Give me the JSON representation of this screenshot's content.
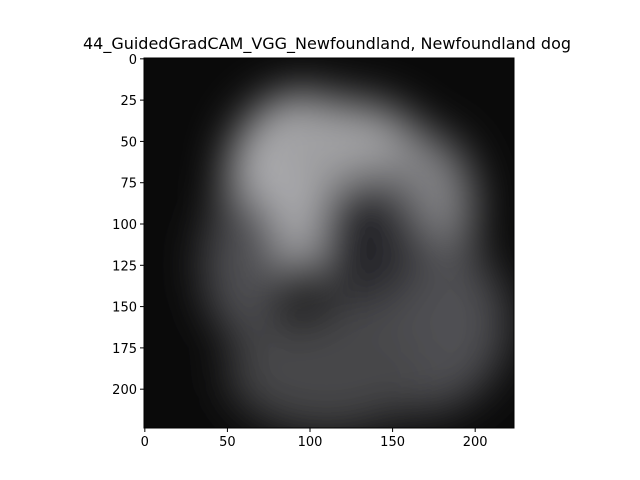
{
  "chart_data": {
    "type": "heatmap",
    "title": "44_GuidedGradCAM_VGG_Newfoundland, Newfoundland dog",
    "xlabel": "",
    "ylabel": "",
    "colormap": "gray",
    "image_width": 224,
    "image_height": 224,
    "xlim": [
      -0.5,
      223.5
    ],
    "ylim": [
      223.5,
      -0.5
    ],
    "x_ticks": [
      0,
      50,
      100,
      150,
      200
    ],
    "x_tick_labels": [
      "0",
      "50",
      "100",
      "150",
      "200"
    ],
    "y_ticks": [
      0,
      25,
      50,
      75,
      100,
      125,
      150,
      175,
      200
    ],
    "y_tick_labels": [
      "0",
      "25",
      "50",
      "75",
      "100",
      "125",
      "150",
      "175",
      "200"
    ],
    "grid": false,
    "activation_blobs": [
      {
        "cx": 95,
        "cy": 75,
        "rx": 45,
        "ry": 55,
        "intensity": 0.85
      },
      {
        "cx": 120,
        "cy": 55,
        "rx": 50,
        "ry": 30,
        "intensity": 0.75
      },
      {
        "cx": 170,
        "cy": 90,
        "rx": 30,
        "ry": 45,
        "intensity": 0.6
      },
      {
        "cx": 165,
        "cy": 160,
        "rx": 55,
        "ry": 55,
        "intensity": 0.35
      },
      {
        "cx": 110,
        "cy": 190,
        "rx": 60,
        "ry": 35,
        "intensity": 0.3
      },
      {
        "cx": 60,
        "cy": 125,
        "rx": 25,
        "ry": 45,
        "intensity": 0.35
      }
    ],
    "dark_core": {
      "cx": 135,
      "cy": 110,
      "rx": 32,
      "ry": 40,
      "intensity": 0.15
    }
  }
}
